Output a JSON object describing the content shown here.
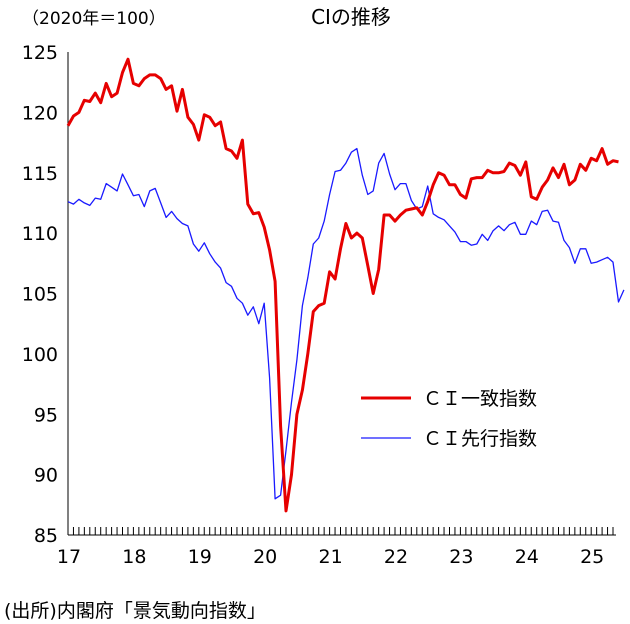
{
  "chart_data": {
    "type": "line",
    "title": "CIの推移",
    "unit_note": "（2020年＝100）",
    "x_ticks": [
      "17",
      "18",
      "19",
      "20",
      "21",
      "22",
      "23",
      "24",
      "25"
    ],
    "y_ticks": [
      "125",
      "120",
      "115",
      "110",
      "105",
      "100",
      "95",
      "90",
      "85"
    ],
    "ylim": [
      85,
      125
    ],
    "x_start": "2017-01",
    "legend_position": "center-right",
    "grid": false,
    "series": [
      {
        "name": "ＣＩ一致指数",
        "color": "#e60000",
        "values": [
          118.9,
          119.7,
          120.0,
          121.0,
          120.9,
          121.6,
          120.8,
          122.4,
          121.3,
          121.6,
          123.3,
          124.4,
          122.4,
          122.2,
          122.8,
          123.1,
          123.1,
          122.8,
          121.9,
          122.2,
          120.1,
          121.9,
          119.6,
          119.0,
          117.7,
          119.8,
          119.6,
          118.9,
          119.2,
          117.0,
          116.8,
          116.2,
          117.7,
          112.4,
          111.6,
          111.7,
          110.5,
          108.6,
          106.0,
          94.0,
          87.0,
          90.0,
          95.0,
          97.0,
          100.0,
          103.5,
          104.0,
          104.2,
          106.8,
          106.2,
          108.7,
          110.8,
          109.6,
          110.0,
          109.6,
          107.3,
          105.0,
          107.0,
          111.5,
          111.5,
          111.0,
          111.5,
          111.9,
          112.0,
          112.1,
          111.5,
          112.6,
          114.0,
          115.0,
          114.8,
          114.0,
          114.0,
          113.2,
          112.9,
          114.5,
          114.6,
          114.6,
          115.2,
          115.0,
          115.0,
          115.1,
          115.8,
          115.6,
          114.8,
          115.9,
          113.0,
          112.8,
          113.8,
          114.4,
          115.4,
          114.6,
          115.7,
          114.0,
          114.4,
          115.7,
          115.2,
          116.2,
          116.0,
          117.0,
          115.7,
          116.0,
          115.9
        ]
      },
      {
        "name": "ＣＩ先行指数",
        "color": "#1a1aff",
        "values": [
          112.6,
          112.4,
          112.8,
          112.5,
          112.3,
          112.9,
          112.8,
          114.1,
          113.8,
          113.5,
          114.9,
          114.0,
          113.1,
          113.2,
          112.2,
          113.5,
          113.7,
          112.5,
          111.3,
          111.8,
          111.2,
          110.8,
          110.6,
          109.1,
          108.5,
          109.2,
          108.3,
          107.6,
          107.1,
          105.9,
          105.6,
          104.6,
          104.2,
          103.2,
          103.9,
          102.5,
          104.2,
          98.0,
          88.0,
          88.3,
          92.0,
          96.0,
          99.5,
          104.0,
          106.3,
          109.1,
          109.6,
          111.0,
          113.2,
          115.1,
          115.2,
          115.8,
          116.7,
          117.0,
          114.8,
          113.2,
          113.5,
          115.8,
          116.6,
          114.9,
          113.6,
          114.1,
          114.1,
          112.7,
          112.0,
          112.2,
          113.9,
          111.6,
          111.3,
          111.1,
          110.6,
          110.1,
          109.3,
          109.3,
          109.0,
          109.1,
          109.9,
          109.4,
          110.2,
          110.6,
          110.2,
          110.7,
          110.9,
          109.9,
          109.9,
          111.0,
          110.7,
          111.8,
          111.9,
          111.0,
          110.9,
          109.4,
          108.8,
          107.5,
          108.7,
          108.7,
          107.5,
          107.6,
          107.8,
          108.0,
          107.6,
          104.3,
          105.3
        ]
      }
    ]
  },
  "source_note": "(出所)内閣府「景気動向指数」"
}
